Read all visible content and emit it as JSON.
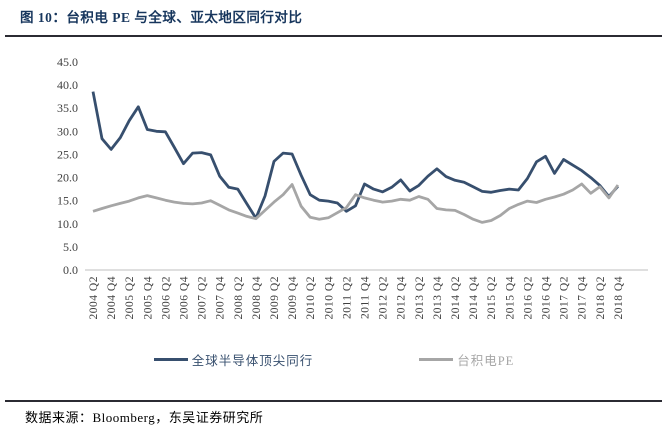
{
  "figure": {
    "title": "图 10：台积电 PE 与全球、亚太地区同行对比",
    "source": "数据来源：Bloomberg，东吴证券研究所"
  },
  "chart_data": {
    "type": "line",
    "title": "台积电 PE 与全球、亚太地区同行对比",
    "xlabel": "",
    "ylabel": "",
    "ylim": [
      0,
      45
    ],
    "grid": false,
    "legend_position": "bottom",
    "colors": {
      "axis_text": "#404040",
      "axis_line": "#BFBFBF",
      "title_accent": "#17365D"
    },
    "y_tick_labels": [
      "0.0",
      "5.0",
      "10.0",
      "15.0",
      "20.0",
      "25.0",
      "30.0",
      "35.0",
      "40.0",
      "45.0"
    ],
    "x_tick_labels": [
      "2004 Q2",
      "2004 Q4",
      "2005 Q2",
      "2005 Q4",
      "2006 Q2",
      "2006 Q4",
      "2007 Q2",
      "2007 Q4",
      "2008 Q2",
      "2008 Q4",
      "2009 Q2",
      "2009 Q4",
      "2010 Q2",
      "2010 Q4",
      "2011 Q2",
      "2011 Q4",
      "2012 Q2",
      "2012 Q4",
      "2013 Q2",
      "2013 Q4",
      "2014 Q2",
      "2014 Q4",
      "2015 Q2",
      "2015 Q4",
      "2016 Q2",
      "2016 Q4",
      "2017 Q2",
      "2017 Q4",
      "2018 Q2",
      "2018 Q4"
    ],
    "categories": [
      "2004 Q2",
      "2004 Q3",
      "2004 Q4",
      "2005 Q1",
      "2005 Q2",
      "2005 Q3",
      "2005 Q4",
      "2006 Q1",
      "2006 Q2",
      "2006 Q3",
      "2006 Q4",
      "2007 Q1",
      "2007 Q2",
      "2007 Q3",
      "2007 Q4",
      "2008 Q1",
      "2008 Q2",
      "2008 Q3",
      "2008 Q4",
      "2009 Q1",
      "2009 Q2",
      "2009 Q3",
      "2009 Q4",
      "2010 Q1",
      "2010 Q2",
      "2010 Q3",
      "2010 Q4",
      "2011 Q1",
      "2011 Q2",
      "2011 Q3",
      "2011 Q4",
      "2012 Q1",
      "2012 Q2",
      "2012 Q3",
      "2012 Q4",
      "2013 Q1",
      "2013 Q2",
      "2013 Q3",
      "2013 Q4",
      "2014 Q1",
      "2014 Q2",
      "2014 Q3",
      "2014 Q4",
      "2015 Q1",
      "2015 Q2",
      "2015 Q3",
      "2015 Q4",
      "2016 Q1",
      "2016 Q2",
      "2016 Q3",
      "2016 Q4",
      "2017 Q1",
      "2017 Q2",
      "2017 Q3",
      "2017 Q4",
      "2018 Q1",
      "2018 Q2",
      "2018 Q3",
      "2018 Q4"
    ],
    "series": [
      {
        "key": "global_semiconductor_peers",
        "name": "全球半导体顶尖同行",
        "color": "#374F6E",
        "stroke_width": 2.8,
        "values": [
          38.6,
          28.4,
          26.1,
          28.6,
          32.3,
          35.3,
          30.4,
          30.0,
          29.9,
          26.5,
          23.0,
          25.3,
          25.4,
          24.9,
          20.3,
          17.9,
          17.5,
          14.3,
          11.2,
          16.0,
          23.5,
          25.3,
          25.1,
          20.5,
          16.3,
          15.1,
          14.9,
          14.5,
          12.7,
          13.9,
          18.6,
          17.5,
          16.9,
          17.9,
          19.5,
          17.1,
          18.3,
          20.3,
          21.9,
          20.2,
          19.4,
          19.0,
          18.0,
          17.0,
          16.8,
          17.2,
          17.5,
          17.3,
          19.8,
          23.4,
          24.6,
          20.9,
          23.9,
          22.7,
          21.5,
          20.0,
          18.3,
          15.9,
          18.1
        ]
      },
      {
        "key": "tsmc_pe",
        "name": "台积电PE",
        "color": "#A6A6A6",
        "stroke_width": 2.8,
        "values": [
          12.7,
          13.3,
          13.9,
          14.4,
          14.9,
          15.6,
          16.1,
          15.6,
          15.1,
          14.7,
          14.4,
          14.3,
          14.5,
          15.0,
          14.0,
          13.0,
          12.3,
          11.6,
          11.1,
          12.9,
          14.7,
          16.3,
          18.5,
          13.8,
          11.4,
          11.0,
          11.3,
          12.4,
          13.5,
          16.3,
          15.6,
          15.1,
          14.7,
          14.9,
          15.3,
          15.1,
          15.9,
          15.3,
          13.3,
          13.0,
          12.9,
          12.0,
          11.0,
          10.3,
          10.7,
          11.8,
          13.3,
          14.2,
          14.9,
          14.6,
          15.3,
          15.8,
          16.4,
          17.3,
          18.6,
          16.6,
          18.0,
          15.6,
          18.4
        ]
      }
    ]
  }
}
